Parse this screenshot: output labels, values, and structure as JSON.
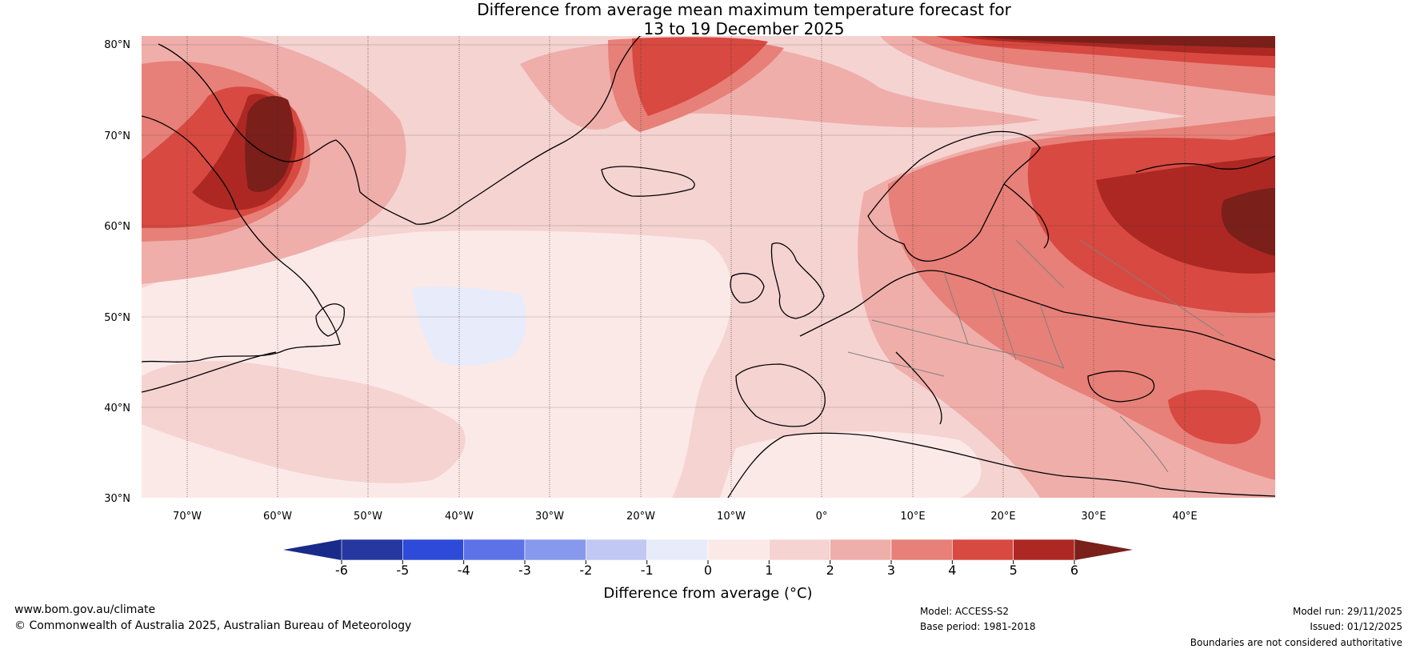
{
  "title": {
    "line1": "Difference from average mean maximum temperature forecast for",
    "line2": "13 to 19 December 2025"
  },
  "map": {
    "lat_labels": [
      "80°N",
      "70°N",
      "60°N",
      "50°N",
      "40°N",
      "30°N"
    ],
    "lon_labels": [
      "70°W",
      "60°W",
      "50°W",
      "40°W",
      "30°W",
      "20°W",
      "10°W",
      "0°",
      "10°E",
      "20°E",
      "30°E",
      "40°E"
    ],
    "lat_range": [
      30,
      81
    ],
    "lon_range": [
      -75,
      50
    ]
  },
  "colorbar": {
    "ticks": [
      "-6",
      "-5",
      "-4",
      "-3",
      "-2",
      "-1",
      "0",
      "1",
      "2",
      "3",
      "4",
      "5",
      "6"
    ],
    "colors": [
      "#26379f",
      "#2e4ad9",
      "#5c72e6",
      "#8799ec",
      "#c0c8f3",
      "#e8ebfa",
      "#fbe9e8",
      "#f5d3d1",
      "#efaeaa",
      "#e78078",
      "#d84941",
      "#ad2823"
    ],
    "under_color": "#1a2a8a",
    "over_color": "#7a1f1a",
    "label": "Difference from average (°C)"
  },
  "footer": {
    "website": "www.bom.gov.au/climate",
    "copyright": "© Commonwealth of Australia 2025, Australian Bureau of Meteorology",
    "model": "Model: ACCESS-S2",
    "base_period": "Base period: 1981-2018",
    "model_run": "Model run: 29/11/2025",
    "issued": "Issued: 01/12/2025",
    "disclaimer": "Boundaries are not considered authoritative"
  }
}
